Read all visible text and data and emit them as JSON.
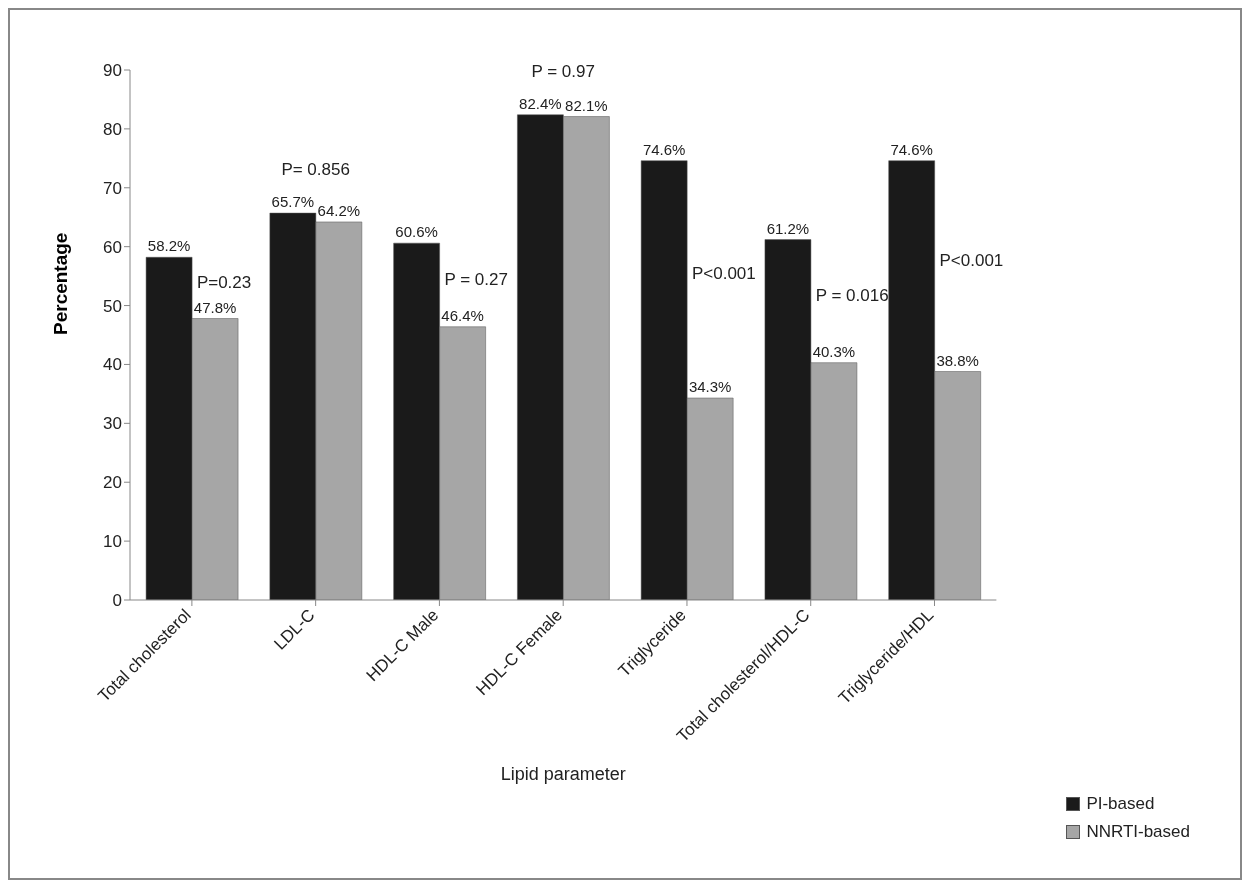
{
  "chart_data": {
    "type": "bar",
    "xlabel": "Lipid parameter",
    "ylabel": "Percentage",
    "categories": [
      "Total cholesterol",
      "LDL-C",
      "HDL-C Male",
      "HDL-C Female",
      "Triglyceride",
      "Total cholesterol/HDL-C",
      "Triglyceride/HDL"
    ],
    "series": [
      {
        "name": "PI-based",
        "color": "#1a1a1a",
        "values": [
          58.2,
          65.7,
          60.6,
          82.4,
          74.6,
          61.2,
          74.6
        ],
        "value_labels": [
          "58.2%",
          "65.7%",
          "60.6%",
          "82.4%",
          "74.6%",
          "61.2%",
          "74.6%"
        ]
      },
      {
        "name": "NNRTI-based",
        "color": "#a6a6a6",
        "values": [
          47.8,
          64.2,
          46.4,
          82.1,
          34.3,
          40.3,
          38.8
        ],
        "value_labels": [
          "47.8%",
          "64.2%",
          "46.4%",
          "82.1%",
          "34.3%",
          "40.3%",
          "38.8%"
        ]
      }
    ],
    "ylim": [
      0,
      90
    ],
    "yticks": [
      0,
      10,
      20,
      30,
      40,
      50,
      60,
      70,
      80,
      90
    ],
    "grid": false,
    "legend": "bottom right",
    "annotations": [
      "P=0.23",
      "P= 0.856",
      "P = 0.27",
      "P = 0.97",
      "P<0.001",
      "P = 0.016",
      "P<0.001"
    ]
  }
}
